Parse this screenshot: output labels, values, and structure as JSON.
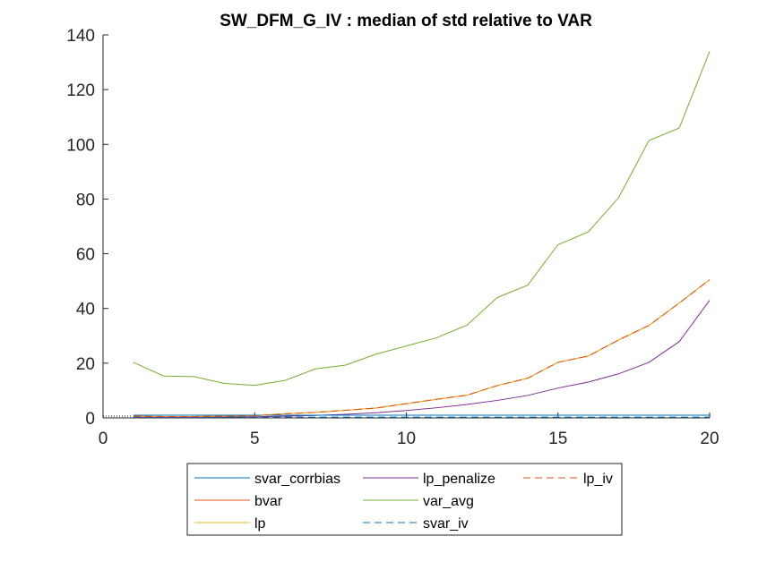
{
  "chart_data": {
    "type": "line",
    "title": "SW_DFM_G_IV : median of std relative to VAR",
    "xlabel": "",
    "ylabel": "",
    "xlim": [
      0,
      20
    ],
    "ylim": [
      0,
      140
    ],
    "xticks": [
      0,
      5,
      10,
      15,
      20
    ],
    "yticks": [
      0,
      20,
      40,
      60,
      80,
      100,
      120,
      140
    ],
    "grid": false,
    "legend_position": "bottom-outside",
    "x": [
      1,
      2,
      3,
      4,
      5,
      6,
      7,
      8,
      9,
      10,
      11,
      12,
      13,
      14,
      15,
      16,
      17,
      18,
      19,
      20
    ],
    "series": [
      {
        "name": "svar_corrbias",
        "color": "#0072BD",
        "dash": "solid",
        "values": [
          1,
          1,
          1,
          1,
          1,
          1,
          1,
          1,
          1,
          1,
          1,
          1,
          1,
          1,
          1,
          1,
          1,
          1,
          1,
          1
        ]
      },
      {
        "name": "bvar",
        "color": "#D95319",
        "dash": "solid",
        "values": [
          0.6,
          0.5,
          0.5,
          0.6,
          0.8,
          1.5,
          2.0,
          2.8,
          3.6,
          5.2,
          6.8,
          8.3,
          11.8,
          14.5,
          20.3,
          22.6,
          28.5,
          33.8,
          42.0,
          50.5
        ]
      },
      {
        "name": "lp",
        "color": "#EDB120",
        "dash": "solid",
        "values": [
          0.5,
          0.5,
          0.5,
          0.6,
          0.8,
          1.5,
          2.0,
          2.8,
          3.6,
          5.2,
          6.8,
          8.3,
          11.8,
          14.5,
          20.3,
          22.6,
          28.5,
          33.8,
          42.0,
          50.5
        ]
      },
      {
        "name": "lp_penalize",
        "color": "#7E2F8E",
        "dash": "solid",
        "values": [
          0.2,
          0.2,
          0.2,
          0.3,
          0.4,
          0.6,
          0.9,
          1.3,
          1.9,
          2.7,
          3.7,
          4.9,
          6.4,
          8.2,
          10.9,
          13.1,
          16.1,
          20.3,
          27.9,
          43.0
        ]
      },
      {
        "name": "var_avg",
        "color": "#77AC30",
        "dash": "solid",
        "values": [
          20.3,
          15.3,
          15.1,
          12.6,
          11.9,
          13.7,
          17.9,
          19.3,
          23.3,
          26.3,
          29.3,
          33.9,
          44.0,
          48.5,
          63.3,
          68.0,
          80.5,
          101.4,
          106.0,
          134.0
        ]
      },
      {
        "name": "svar_iv",
        "color": "#0072BD",
        "dash": "dashed",
        "values": [
          0.3,
          0.3,
          0.3,
          0.3,
          0.3,
          0.3,
          0.3,
          0.3,
          0.3,
          0.3,
          0.3,
          0.3,
          0.3,
          0.3,
          0.3,
          0.3,
          0.3,
          0.3,
          0.3,
          0.3
        ]
      },
      {
        "name": "lp_iv",
        "color": "#D95319",
        "dash": "dashed",
        "values": [
          0.6,
          0.5,
          0.5,
          0.6,
          0.8,
          1.5,
          2.0,
          2.8,
          3.6,
          5.2,
          6.8,
          8.3,
          11.8,
          14.5,
          20.3,
          22.6,
          28.5,
          33.8,
          42.0,
          50.5
        ]
      }
    ],
    "legend": {
      "columns": [
        [
          "svar_corrbias",
          "bvar",
          "lp"
        ],
        [
          "lp_penalize",
          "var_avg",
          "svar_iv"
        ],
        [
          "lp_iv"
        ]
      ]
    }
  }
}
